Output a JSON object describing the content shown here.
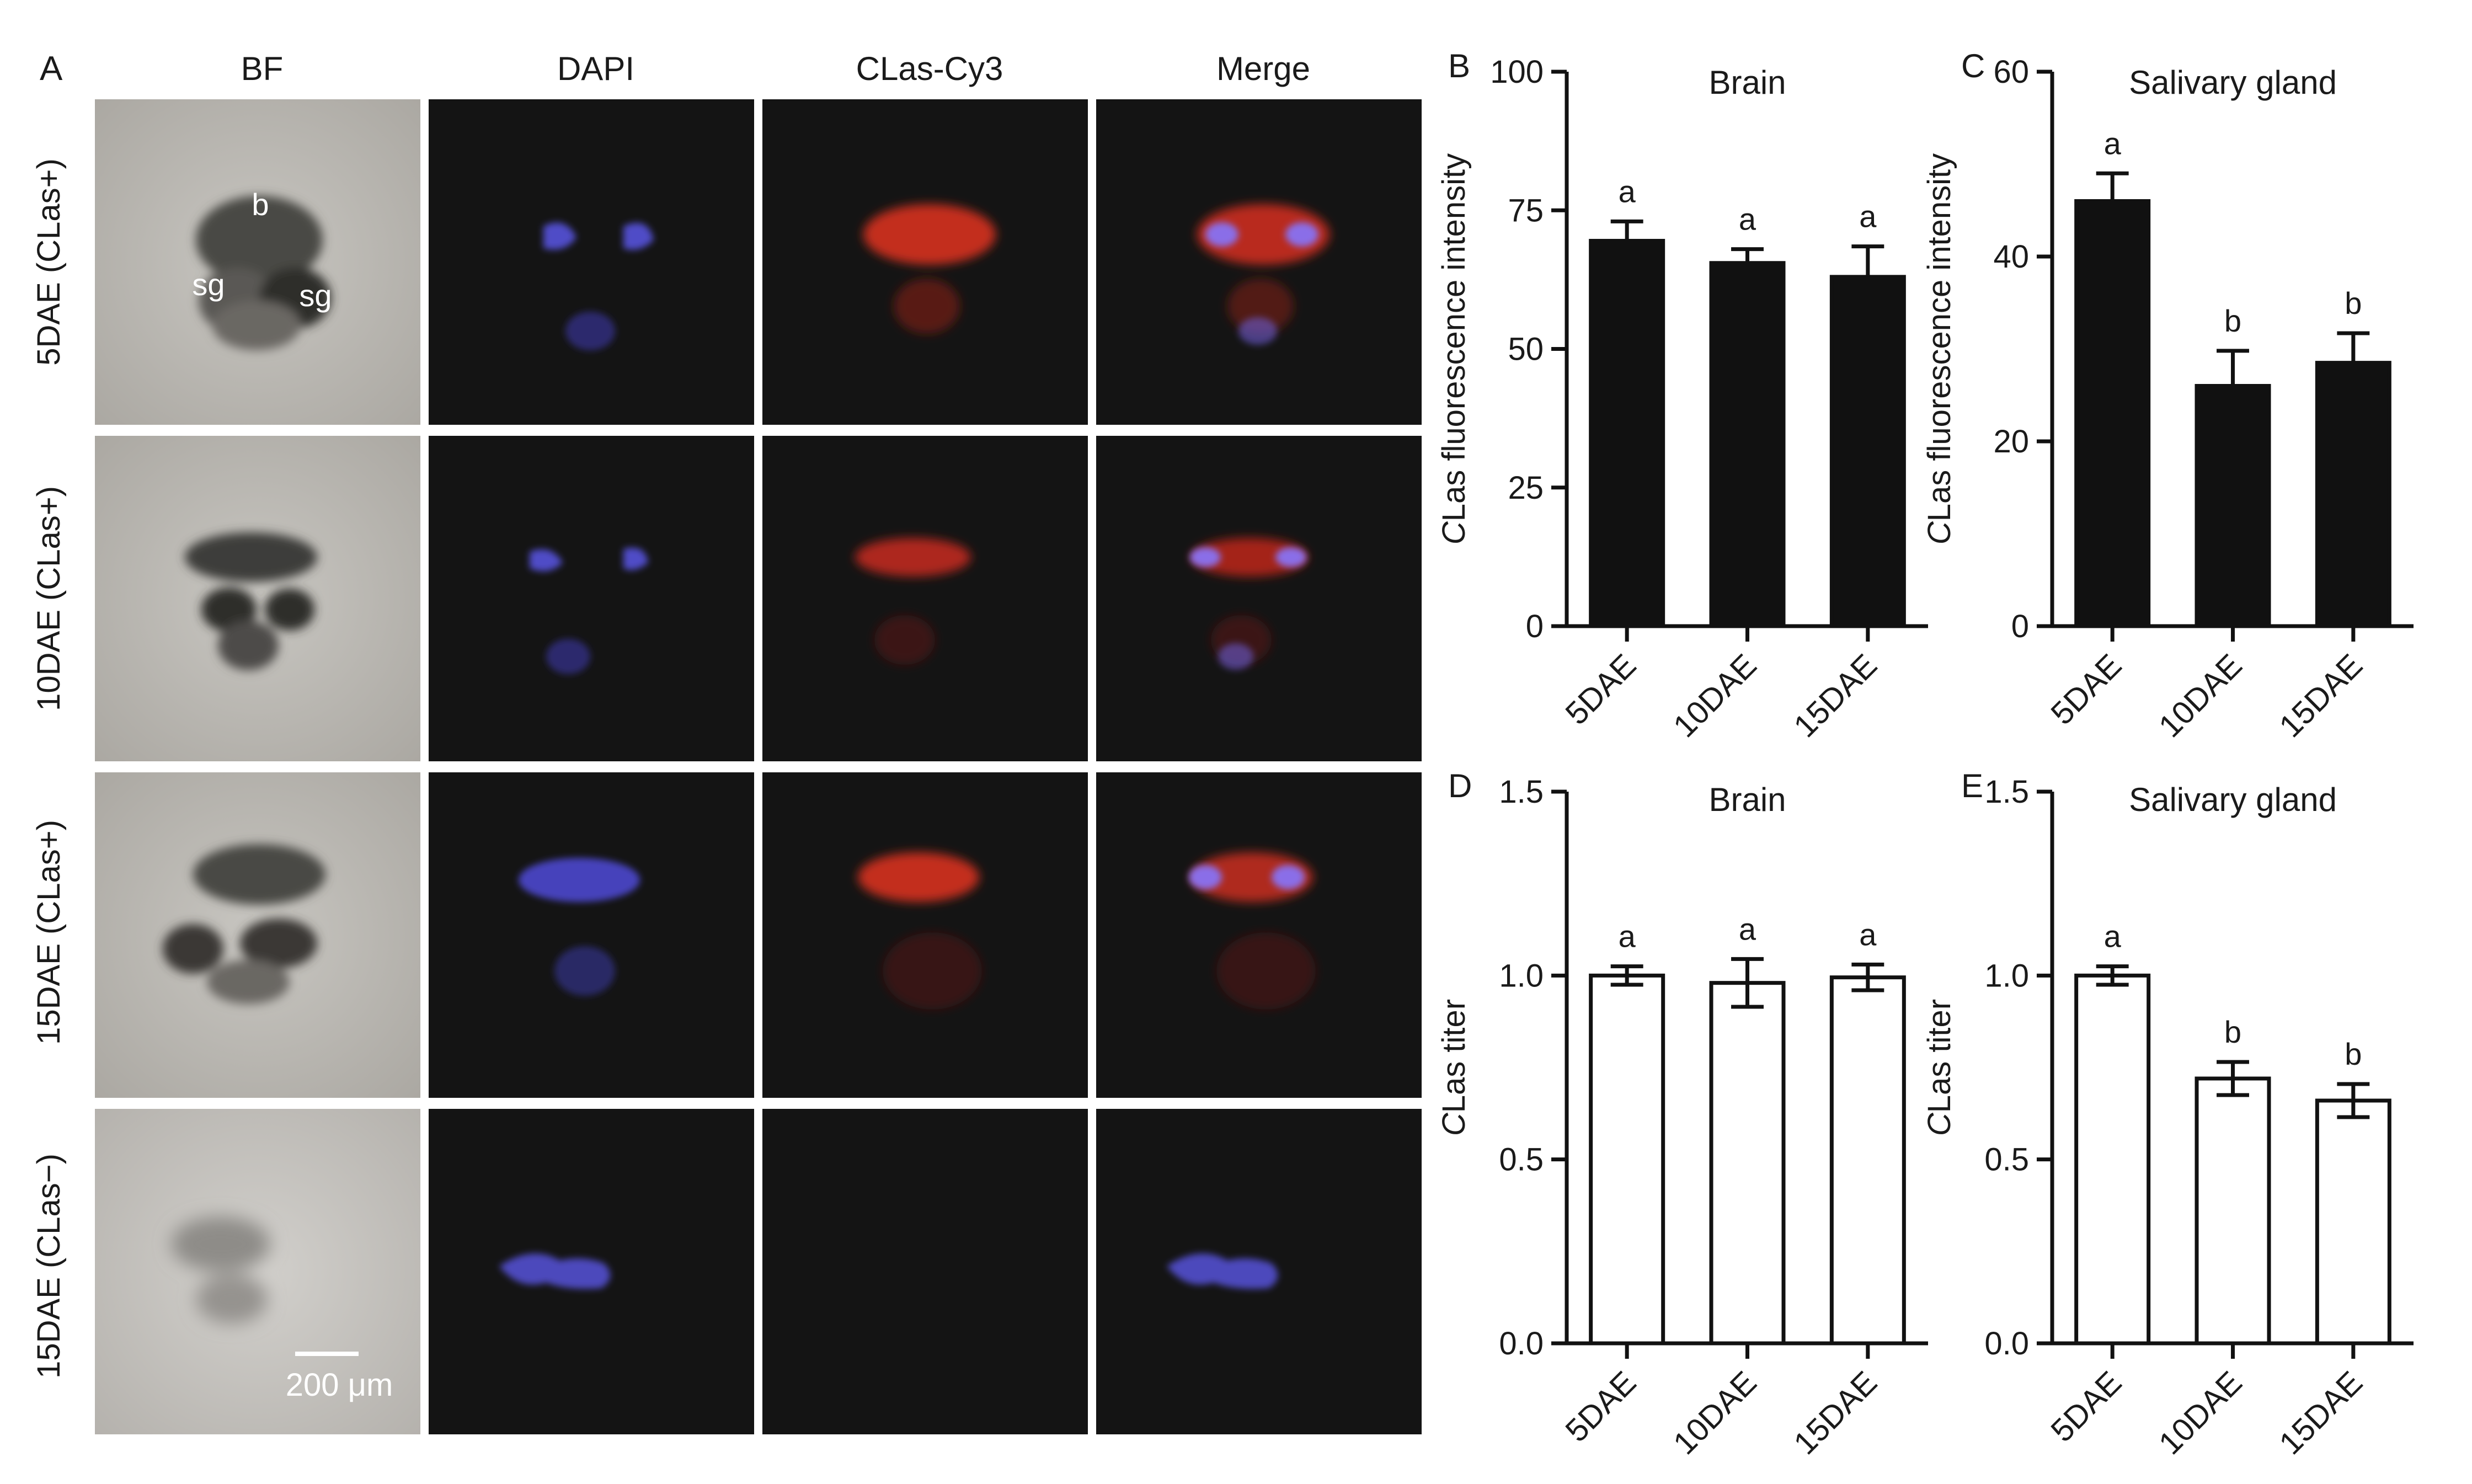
{
  "figure": {
    "panel_a": {
      "letter": "A",
      "columns": [
        "BF",
        "DAPI",
        "CLas-Cy3",
        "Merge"
      ],
      "rows": [
        "5DAE (CLas+)",
        "10DAE (CLas+)",
        "15DAE (CLas+)",
        "15DAE (CLas−)"
      ],
      "annotations": {
        "brain": "b",
        "salivary_gland": "sg"
      },
      "scale_bar": "200 μm",
      "colors": {
        "dapi": "#4f4bd8",
        "cy3": "#c8281c",
        "merge_blue": "#8a6ee8",
        "micrograph_bg": "#141414",
        "bf_bg": "#bdbab4"
      }
    }
  },
  "chart_data": [
    {
      "id": "B",
      "type": "bar",
      "letter": "B",
      "title": "Brain",
      "xlabel": "",
      "ylabel": "CLas fluorescence intensity",
      "categories": [
        "5DAE",
        "10DAE",
        "15DAE"
      ],
      "values": [
        69.5,
        65.5,
        63.0
      ],
      "errors": [
        3.5,
        2.5,
        5.5
      ],
      "sig_letters": [
        "a",
        "a",
        "a"
      ],
      "ylim": [
        0,
        100
      ],
      "yticks": [
        0,
        25,
        50,
        75,
        100
      ],
      "ytick_labels": [
        "0",
        "25",
        "50",
        "75",
        "100"
      ],
      "bar_fill": "#111111",
      "grid": false
    },
    {
      "id": "C",
      "type": "bar",
      "letter": "C",
      "title": "Salivary gland",
      "xlabel": "",
      "ylabel": "CLas fluorescence intensity",
      "categories": [
        "5DAE",
        "10DAE",
        "15DAE"
      ],
      "values": [
        46.0,
        26.0,
        28.5
      ],
      "errors": [
        3.0,
        3.8,
        3.2
      ],
      "sig_letters": [
        "a",
        "b",
        "b"
      ],
      "ylim": [
        0,
        60
      ],
      "yticks": [
        0,
        20,
        40,
        60
      ],
      "ytick_labels": [
        "0",
        "20",
        "40",
        "60"
      ],
      "bar_fill": "#111111",
      "grid": false
    },
    {
      "id": "D",
      "type": "bar",
      "letter": "D",
      "title": "Brain",
      "xlabel": "",
      "ylabel": "CLas titer",
      "categories": [
        "5DAE",
        "10DAE",
        "15DAE"
      ],
      "values": [
        1.0,
        0.98,
        0.995
      ],
      "errors": [
        0.025,
        0.065,
        0.035
      ],
      "sig_letters": [
        "a",
        "a",
        "a"
      ],
      "ylim": [
        0,
        1.5
      ],
      "yticks": [
        0,
        0.5,
        1.0,
        1.5
      ],
      "ytick_labels": [
        "0.0",
        "0.5",
        "1.0",
        "1.5"
      ],
      "bar_fill": "#ffffff",
      "grid": false
    },
    {
      "id": "E",
      "type": "bar",
      "letter": "E",
      "title": "Salivary gland",
      "xlabel": "",
      "ylabel": "CLas titer",
      "categories": [
        "5DAE",
        "10DAE",
        "15DAE"
      ],
      "values": [
        1.0,
        0.72,
        0.66
      ],
      "errors": [
        0.025,
        0.045,
        0.045
      ],
      "sig_letters": [
        "a",
        "b",
        "b"
      ],
      "ylim": [
        0,
        1.5
      ],
      "yticks": [
        0,
        0.5,
        1.0,
        1.5
      ],
      "ytick_labels": [
        "0.0",
        "0.5",
        "1.0",
        "1.5"
      ],
      "bar_fill": "#ffffff",
      "grid": false
    }
  ]
}
